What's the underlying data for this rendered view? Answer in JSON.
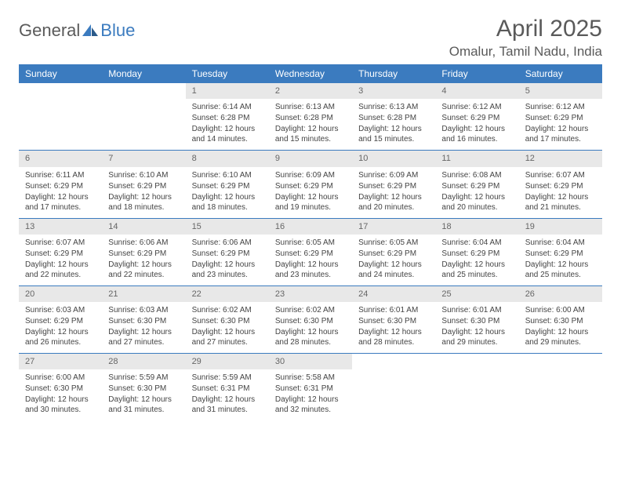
{
  "logo": {
    "word1": "General",
    "word2": "Blue"
  },
  "title": "April 2025",
  "location": "Omalur, Tamil Nadu, India",
  "colors": {
    "header_bg": "#3b7bbf",
    "header_text": "#ffffff",
    "daynum_bg": "#e8e8e8",
    "daynum_text": "#666666",
    "body_text": "#444444",
    "title_text": "#5a5a5a",
    "row_border": "#3b7bbf",
    "page_bg": "#ffffff"
  },
  "weekdays": [
    "Sunday",
    "Monday",
    "Tuesday",
    "Wednesday",
    "Thursday",
    "Friday",
    "Saturday"
  ],
  "weeks": [
    [
      null,
      null,
      {
        "n": "1",
        "sr": "6:14 AM",
        "ss": "6:28 PM",
        "dl": "12 hours and 14 minutes."
      },
      {
        "n": "2",
        "sr": "6:13 AM",
        "ss": "6:28 PM",
        "dl": "12 hours and 15 minutes."
      },
      {
        "n": "3",
        "sr": "6:13 AM",
        "ss": "6:28 PM",
        "dl": "12 hours and 15 minutes."
      },
      {
        "n": "4",
        "sr": "6:12 AM",
        "ss": "6:29 PM",
        "dl": "12 hours and 16 minutes."
      },
      {
        "n": "5",
        "sr": "6:12 AM",
        "ss": "6:29 PM",
        "dl": "12 hours and 17 minutes."
      }
    ],
    [
      {
        "n": "6",
        "sr": "6:11 AM",
        "ss": "6:29 PM",
        "dl": "12 hours and 17 minutes."
      },
      {
        "n": "7",
        "sr": "6:10 AM",
        "ss": "6:29 PM",
        "dl": "12 hours and 18 minutes."
      },
      {
        "n": "8",
        "sr": "6:10 AM",
        "ss": "6:29 PM",
        "dl": "12 hours and 18 minutes."
      },
      {
        "n": "9",
        "sr": "6:09 AM",
        "ss": "6:29 PM",
        "dl": "12 hours and 19 minutes."
      },
      {
        "n": "10",
        "sr": "6:09 AM",
        "ss": "6:29 PM",
        "dl": "12 hours and 20 minutes."
      },
      {
        "n": "11",
        "sr": "6:08 AM",
        "ss": "6:29 PM",
        "dl": "12 hours and 20 minutes."
      },
      {
        "n": "12",
        "sr": "6:07 AM",
        "ss": "6:29 PM",
        "dl": "12 hours and 21 minutes."
      }
    ],
    [
      {
        "n": "13",
        "sr": "6:07 AM",
        "ss": "6:29 PM",
        "dl": "12 hours and 22 minutes."
      },
      {
        "n": "14",
        "sr": "6:06 AM",
        "ss": "6:29 PM",
        "dl": "12 hours and 22 minutes."
      },
      {
        "n": "15",
        "sr": "6:06 AM",
        "ss": "6:29 PM",
        "dl": "12 hours and 23 minutes."
      },
      {
        "n": "16",
        "sr": "6:05 AM",
        "ss": "6:29 PM",
        "dl": "12 hours and 23 minutes."
      },
      {
        "n": "17",
        "sr": "6:05 AM",
        "ss": "6:29 PM",
        "dl": "12 hours and 24 minutes."
      },
      {
        "n": "18",
        "sr": "6:04 AM",
        "ss": "6:29 PM",
        "dl": "12 hours and 25 minutes."
      },
      {
        "n": "19",
        "sr": "6:04 AM",
        "ss": "6:29 PM",
        "dl": "12 hours and 25 minutes."
      }
    ],
    [
      {
        "n": "20",
        "sr": "6:03 AM",
        "ss": "6:29 PM",
        "dl": "12 hours and 26 minutes."
      },
      {
        "n": "21",
        "sr": "6:03 AM",
        "ss": "6:30 PM",
        "dl": "12 hours and 27 minutes."
      },
      {
        "n": "22",
        "sr": "6:02 AM",
        "ss": "6:30 PM",
        "dl": "12 hours and 27 minutes."
      },
      {
        "n": "23",
        "sr": "6:02 AM",
        "ss": "6:30 PM",
        "dl": "12 hours and 28 minutes."
      },
      {
        "n": "24",
        "sr": "6:01 AM",
        "ss": "6:30 PM",
        "dl": "12 hours and 28 minutes."
      },
      {
        "n": "25",
        "sr": "6:01 AM",
        "ss": "6:30 PM",
        "dl": "12 hours and 29 minutes."
      },
      {
        "n": "26",
        "sr": "6:00 AM",
        "ss": "6:30 PM",
        "dl": "12 hours and 29 minutes."
      }
    ],
    [
      {
        "n": "27",
        "sr": "6:00 AM",
        "ss": "6:30 PM",
        "dl": "12 hours and 30 minutes."
      },
      {
        "n": "28",
        "sr": "5:59 AM",
        "ss": "6:30 PM",
        "dl": "12 hours and 31 minutes."
      },
      {
        "n": "29",
        "sr": "5:59 AM",
        "ss": "6:31 PM",
        "dl": "12 hours and 31 minutes."
      },
      {
        "n": "30",
        "sr": "5:58 AM",
        "ss": "6:31 PM",
        "dl": "12 hours and 32 minutes."
      },
      null,
      null,
      null
    ]
  ],
  "labels": {
    "sunrise": "Sunrise: ",
    "sunset": "Sunset: ",
    "daylight": "Daylight: "
  }
}
